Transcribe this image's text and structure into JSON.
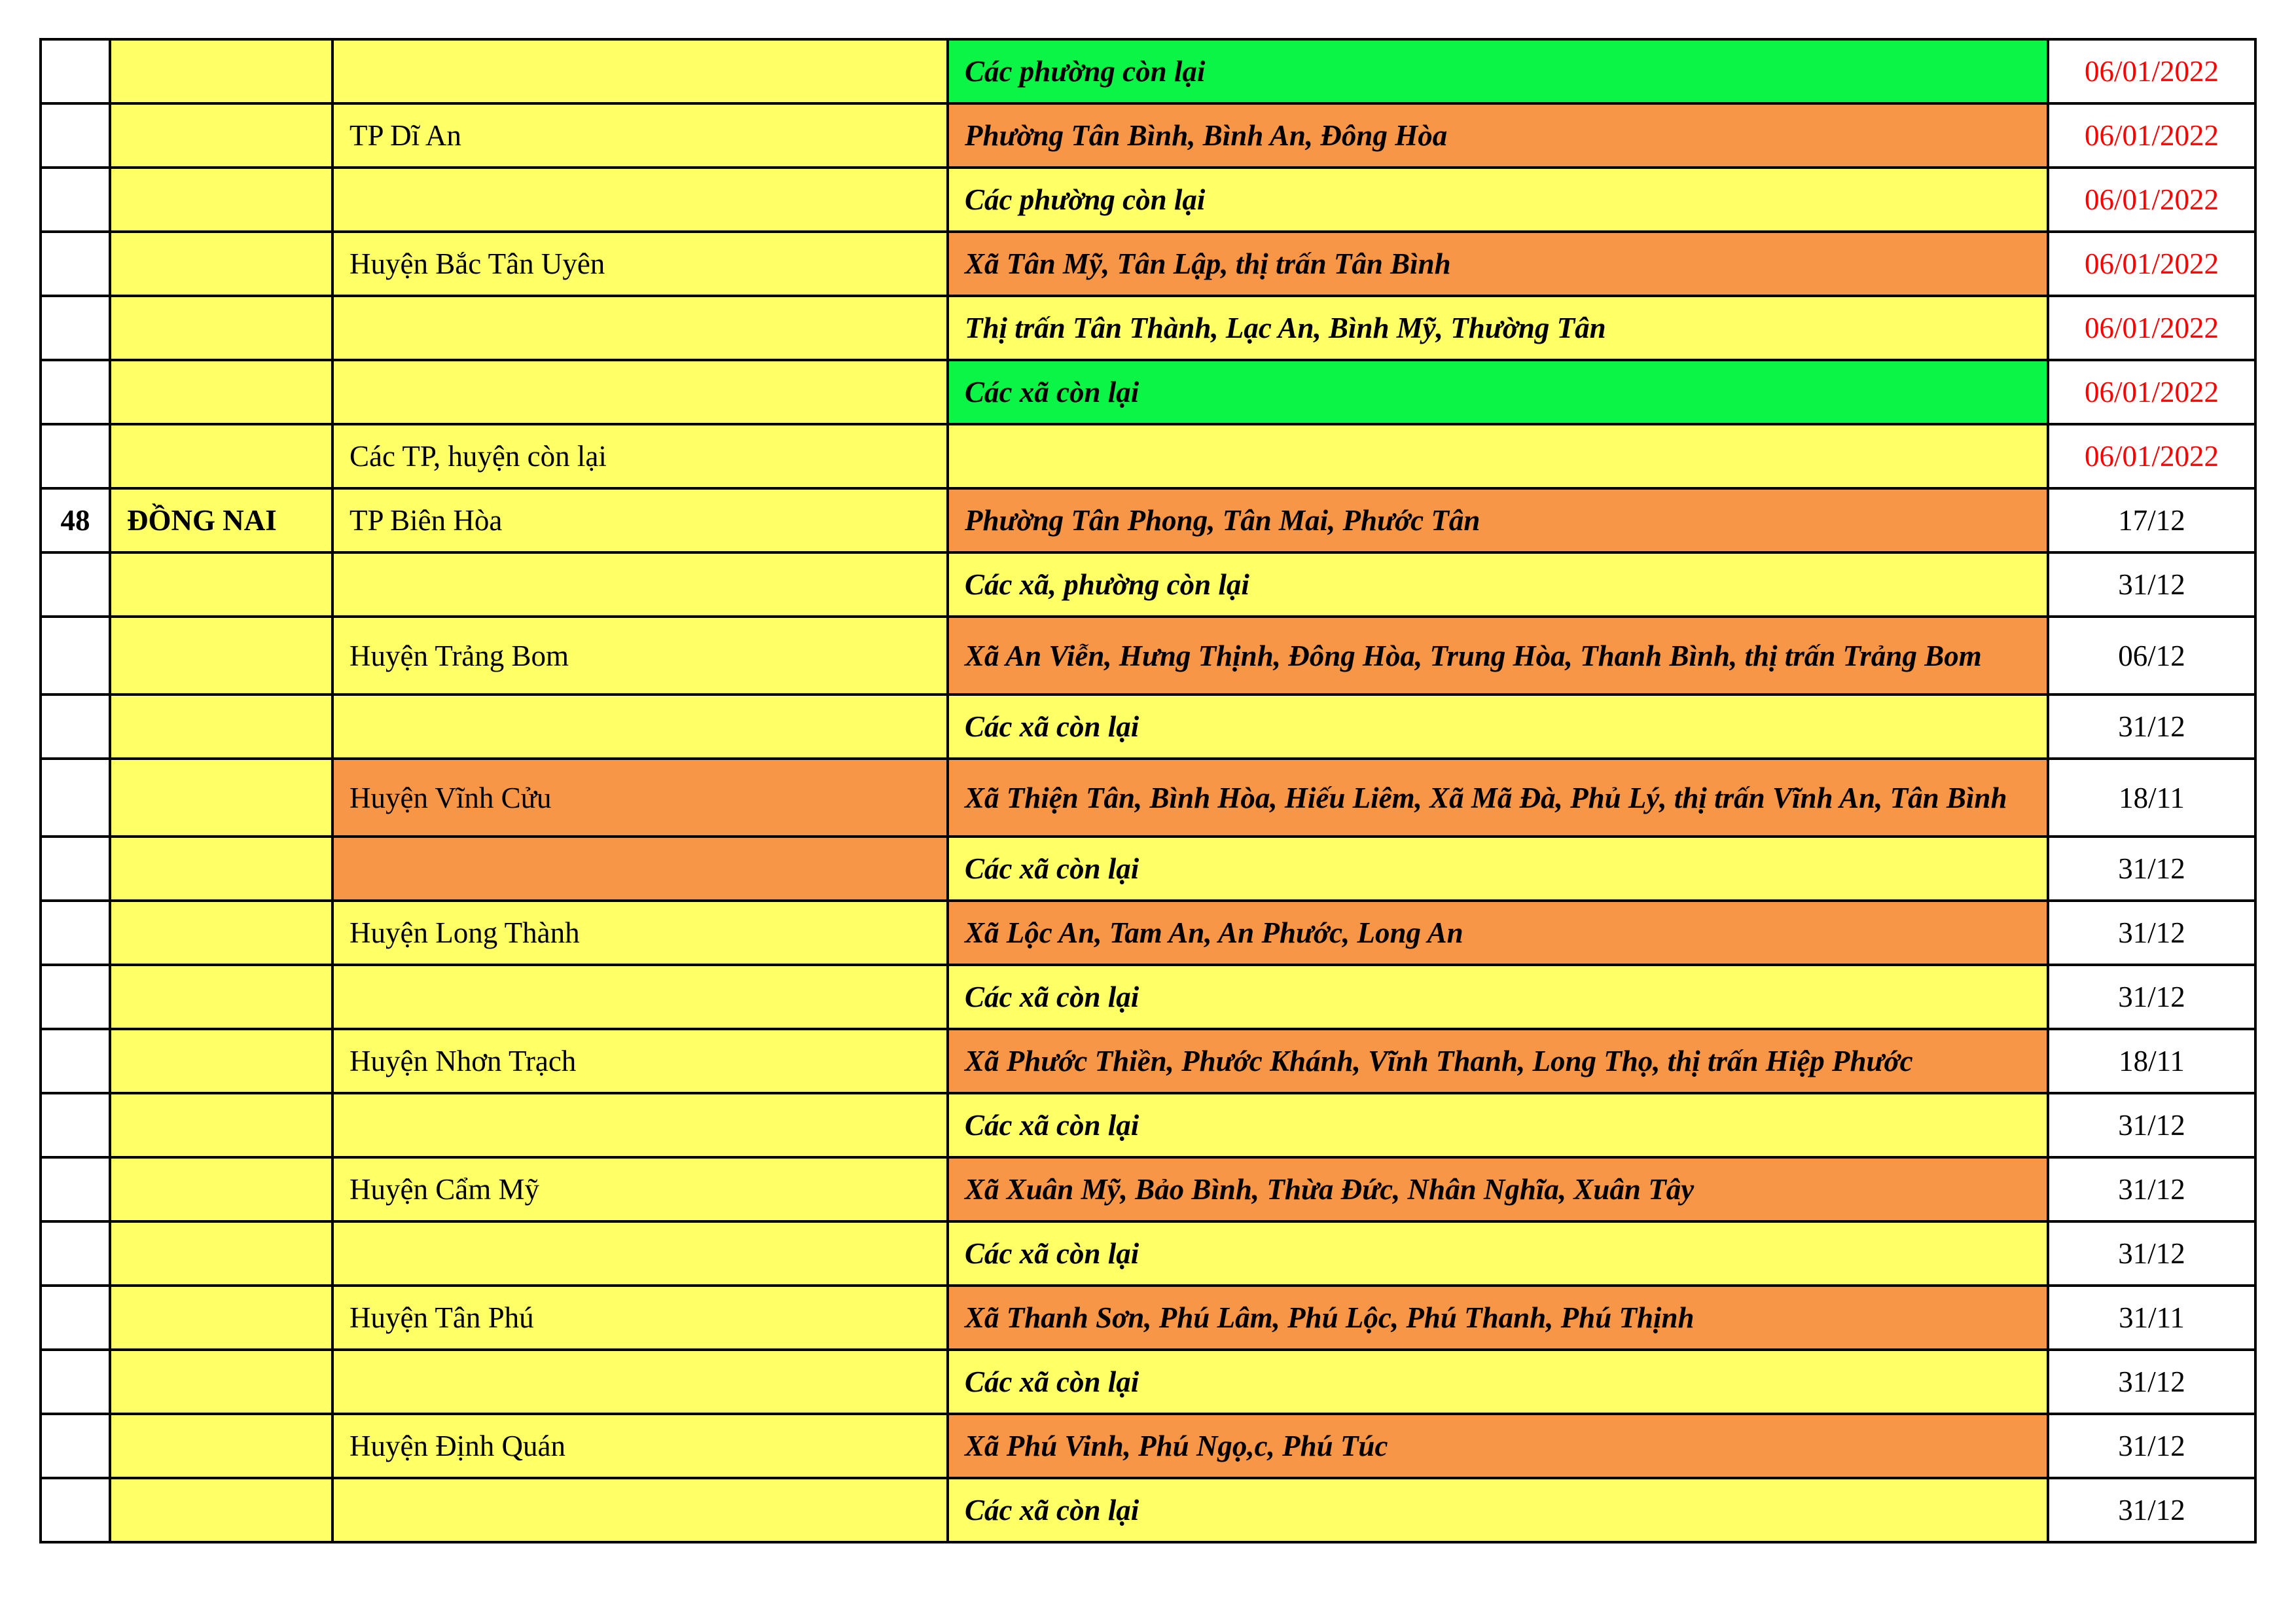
{
  "colors": {
    "yellow": "#ffff66",
    "orange": "#f79646",
    "green": "#0af545",
    "date_red": "#ff0000"
  },
  "rows": [
    {
      "no": "",
      "province": "",
      "district": "",
      "district_color": "yellow",
      "area": "Các phường còn lại",
      "area_color": "green",
      "date": "06/01/2022",
      "date_red": true
    },
    {
      "no": "",
      "province": "",
      "district": "TP Dĩ An",
      "district_color": "yellow",
      "area": "Phường Tân Bình, Bình An, Đông Hòa",
      "area_color": "orange",
      "date": "06/01/2022",
      "date_red": true
    },
    {
      "no": "",
      "province": "",
      "district": "",
      "district_color": "yellow",
      "area": "Các phường còn lại",
      "area_color": "yellow",
      "date": "06/01/2022",
      "date_red": true
    },
    {
      "no": "",
      "province": "",
      "district": "Huyện Bắc Tân Uyên",
      "district_color": "yellow",
      "area": "Xã Tân Mỹ, Tân Lập, thị trấn Tân Bình",
      "area_color": "orange",
      "date": "06/01/2022",
      "date_red": true
    },
    {
      "no": "",
      "province": "",
      "district": "",
      "district_color": "yellow",
      "area": "Thị trấn Tân Thành, Lạc An, Bình Mỹ, Thường Tân",
      "area_color": "yellow",
      "date": "06/01/2022",
      "date_red": true
    },
    {
      "no": "",
      "province": "",
      "district": "",
      "district_color": "yellow",
      "area": "Các xã còn lại",
      "area_color": "green",
      "date": "06/01/2022",
      "date_red": true
    },
    {
      "no": "",
      "province": "",
      "district": "Các TP, huyện còn lại",
      "district_color": "yellow",
      "area": "",
      "area_color": "yellow",
      "date": "06/01/2022",
      "date_red": true
    },
    {
      "no": "48",
      "province": "ĐỒNG NAI",
      "district": "TP Biên Hòa",
      "district_color": "yellow",
      "area": "Phường Tân Phong, Tân Mai, Phước Tân",
      "area_color": "orange",
      "date": "17/12"
    },
    {
      "no": "",
      "province": "",
      "district": "",
      "district_color": "yellow",
      "area": "Các xã, phường còn lại",
      "area_color": "yellow",
      "date": "31/12"
    },
    {
      "no": "",
      "province": "",
      "district": "Huyện Trảng Bom",
      "district_color": "yellow",
      "area": "Xã An Viễn, Hưng Thịnh, Đông Hòa, Trung Hòa, Thanh Bình, thị trấn Trảng Bom",
      "area_color": "orange",
      "date": "06/12",
      "tall": true
    },
    {
      "no": "",
      "province": "",
      "district": "",
      "district_color": "yellow",
      "area": "Các xã còn lại",
      "area_color": "yellow",
      "date": "31/12"
    },
    {
      "no": "",
      "province": "",
      "district": "Huyện Vĩnh Cửu",
      "district_color": "orange",
      "area": "Xã Thiện Tân, Bình Hòa, Hiếu Liêm, Xã Mã Đà, Phủ Lý, thị trấn Vĩnh An, Tân Bình",
      "area_color": "orange",
      "date": "18/11",
      "tall": true
    },
    {
      "no": "",
      "province": "",
      "district": "",
      "district_color": "orange",
      "area": "Các xã còn lại",
      "area_color": "yellow",
      "date": "31/12"
    },
    {
      "no": "",
      "province": "",
      "district": "Huyện Long Thành",
      "district_color": "yellow",
      "area": "Xã Lộc An, Tam An, An Phước, Long An",
      "area_color": "orange",
      "date": "31/12"
    },
    {
      "no": "",
      "province": "",
      "district": "",
      "district_color": "yellow",
      "area": "Các xã còn lại",
      "area_color": "yellow",
      "date": "31/12"
    },
    {
      "no": "",
      "province": "",
      "district": "Huyện Nhơn Trạch",
      "district_color": "yellow",
      "area": "Xã Phước Thiền, Phước Khánh, Vĩnh Thanh, Long Thọ, thị trấn Hiệp Phước",
      "area_color": "orange",
      "date": "18/11"
    },
    {
      "no": "",
      "province": "",
      "district": "",
      "district_color": "yellow",
      "area": "Các xã còn lại",
      "area_color": "yellow",
      "date": "31/12"
    },
    {
      "no": "",
      "province": "",
      "district": "Huyện Cẩm Mỹ",
      "district_color": "yellow",
      "area": "Xã Xuân Mỹ, Bảo Bình, Thừa Đức, Nhân Nghĩa, Xuân Tây",
      "area_color": "orange",
      "date": "31/12"
    },
    {
      "no": "",
      "province": "",
      "district": "",
      "district_color": "yellow",
      "area": "Các xã còn lại",
      "area_color": "yellow",
      "date": "31/12"
    },
    {
      "no": "",
      "province": "",
      "district": "Huyện Tân Phú",
      "district_color": "yellow",
      "area": "Xã Thanh Sơn, Phú Lâm, Phú Lộc, Phú Thanh, Phú Thịnh",
      "area_color": "orange",
      "date": "31/11"
    },
    {
      "no": "",
      "province": "",
      "district": "",
      "district_color": "yellow",
      "area": "Các xã còn lại",
      "area_color": "yellow",
      "date": "31/12"
    },
    {
      "no": "",
      "province": "",
      "district": "Huyện Định Quán",
      "district_color": "yellow",
      "area": "Xã Phú Vinh, Phú Ngọ,c, Phú Túc",
      "area_color": "orange",
      "date": "31/12"
    },
    {
      "no": "",
      "province": "",
      "district": "",
      "district_color": "yellow",
      "area": "Các xã còn lại",
      "area_color": "yellow",
      "date": "31/12"
    }
  ]
}
